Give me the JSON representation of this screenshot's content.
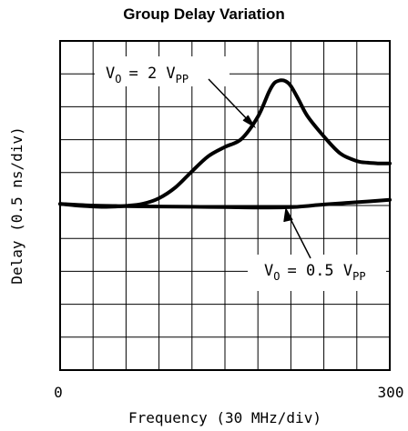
{
  "chart_data": {
    "type": "line",
    "title": "Group Delay Variation",
    "xlabel": "Frequency (30 MHz/div)",
    "ylabel": "Delay (0.5 ns/div)",
    "xlim": [
      0,
      300
    ],
    "x_tick_labels": [
      "0",
      "300"
    ],
    "grid": true,
    "divisions": {
      "x": 10,
      "y": 10
    },
    "series": [
      {
        "name": "V_O = 2 V_PP",
        "label_main": "V",
        "label_sub": "O",
        "label_eq": "= 2 V",
        "label_unit": "PP",
        "x": [
          0,
          15,
          30,
          45,
          60,
          75,
          90,
          105,
          120,
          135,
          150,
          165,
          180,
          190,
          195,
          200,
          205,
          210,
          217,
          225,
          240,
          255,
          270,
          280,
          290,
          300
        ],
        "y": [
          5.05,
          5.0,
          4.97,
          4.96,
          4.99,
          5.05,
          5.22,
          5.55,
          6.04,
          6.5,
          6.78,
          7.02,
          7.7,
          8.45,
          8.72,
          8.8,
          8.78,
          8.63,
          8.22,
          7.72,
          7.1,
          6.58,
          6.35,
          6.3,
          6.28,
          6.28
        ]
      },
      {
        "name": "V_O = 0.5 V_PP",
        "label_main": "V",
        "label_sub": "O",
        "label_eq": "= 0.5 V",
        "label_unit": "PP",
        "x": [
          0,
          30,
          60,
          90,
          120,
          150,
          180,
          210,
          240,
          270,
          300
        ],
        "y": [
          5.05,
          5.0,
          4.98,
          4.97,
          4.96,
          4.95,
          4.94,
          4.95,
          5.03,
          5.1,
          5.17
        ]
      }
    ]
  }
}
